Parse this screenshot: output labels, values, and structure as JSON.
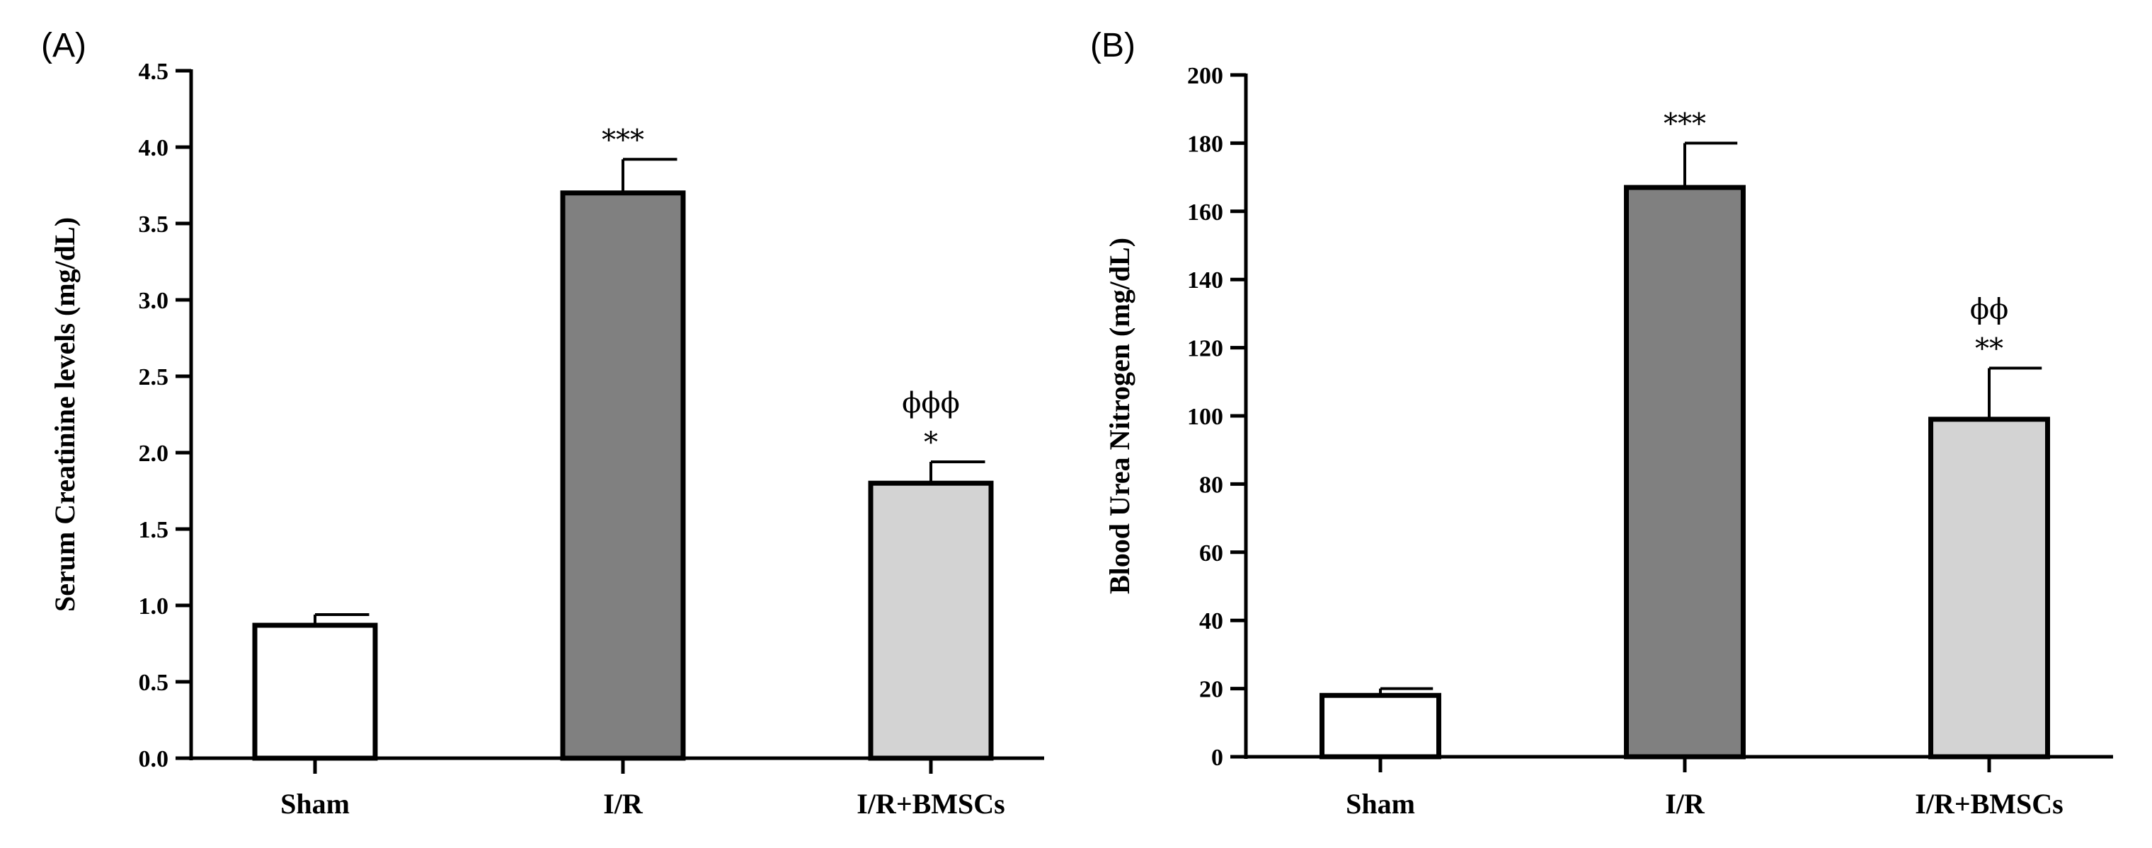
{
  "chart_data": [
    {
      "type": "bar",
      "panel_label": "(A)",
      "title": "",
      "xlabel": "",
      "ylabel": "Serum Creatinine levels (mg/dL)",
      "ylim": [
        0,
        4.5
      ],
      "ytick_labels": [
        "0.0",
        "0.5",
        "1.0",
        "1.5",
        "2.0",
        "2.5",
        "3.0",
        "3.5",
        "4.0",
        "4.5"
      ],
      "categories": [
        "Sham",
        "I/R",
        "I/R+BMSCs"
      ],
      "values": [
        0.87,
        3.7,
        1.8
      ],
      "errors": [
        0.07,
        0.22,
        0.14
      ],
      "bar_colors": [
        "#ffffff",
        "#808080",
        "#d3d3d3"
      ],
      "annotations": [
        {
          "category": "Sham",
          "stars": "",
          "phi": ""
        },
        {
          "category": "I/R",
          "stars": "***",
          "phi": ""
        },
        {
          "category": "I/R+BMSCs",
          "stars": "*",
          "phi": "ϕϕϕ"
        }
      ],
      "grid": false
    },
    {
      "type": "bar",
      "panel_label": "(B)",
      "title": "",
      "xlabel": "",
      "ylabel": "Blood Urea Nitrogen (mg/dL)",
      "ylim": [
        0,
        200
      ],
      "ytick_labels": [
        "0",
        "20",
        "40",
        "60",
        "80",
        "100",
        "120",
        "140",
        "160",
        "180",
        "200"
      ],
      "categories": [
        "Sham",
        "I/R",
        "I/R+BMSCs"
      ],
      "values": [
        18,
        167,
        99
      ],
      "errors": [
        2,
        13,
        15
      ],
      "bar_colors": [
        "#ffffff",
        "#808080",
        "#d3d3d3"
      ],
      "annotations": [
        {
          "category": "Sham",
          "stars": "",
          "phi": ""
        },
        {
          "category": "I/R",
          "stars": "***",
          "phi": ""
        },
        {
          "category": "I/R+BMSCs",
          "stars": "**",
          "phi": "ϕϕ"
        }
      ],
      "grid": false
    }
  ]
}
